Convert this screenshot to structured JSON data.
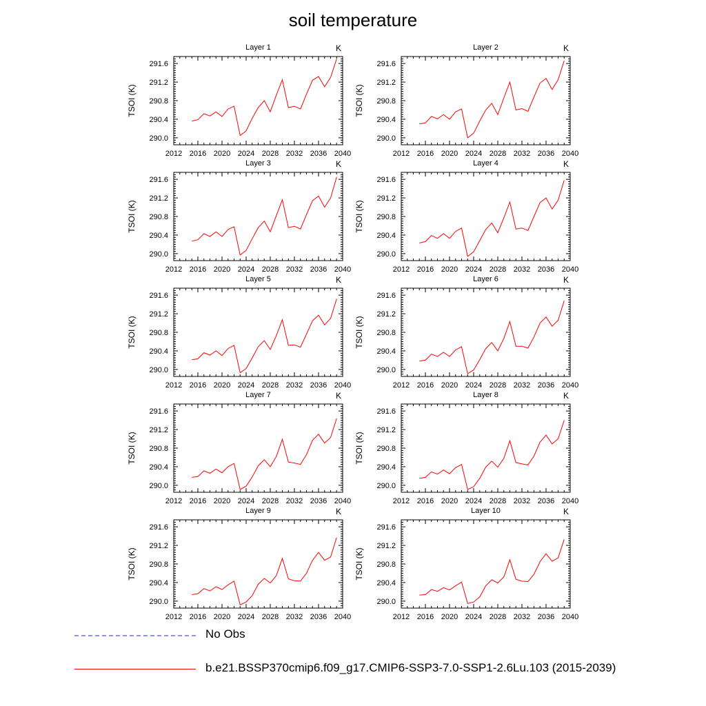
{
  "figure_title": "soil temperature",
  "legend": [
    {
      "label": "No Obs",
      "color": "#8f8fff",
      "style": "dashed"
    },
    {
      "label": "b.e21.BSSP370cmip6.f09_g17.CMIP6-SSP3-7.0-SSP1-2.6Lu.103 (2015-2039)",
      "color": "#ff0000",
      "style": "solid"
    }
  ],
  "chart_data": {
    "type": "line",
    "ylabel": "TSOI  (K)",
    "units_label": "K",
    "xlim": [
      2012,
      2040
    ],
    "ylim": [
      289.85,
      291.75
    ],
    "xticks": [
      2012,
      2016,
      2020,
      2024,
      2028,
      2032,
      2036,
      2040
    ],
    "yticks": [
      290.0,
      290.4,
      290.8,
      291.2,
      291.6
    ],
    "x": [
      2015,
      2016,
      2017,
      2018,
      2019,
      2020,
      2021,
      2022,
      2023,
      2024,
      2025,
      2026,
      2027,
      2028,
      2029,
      2030,
      2031,
      2032,
      2033,
      2034,
      2035,
      2036,
      2037,
      2038,
      2039
    ],
    "line_color": "#ff0000",
    "panels": [
      {
        "title": "Layer 1",
        "values": [
          290.36,
          290.39,
          290.52,
          290.47,
          290.56,
          290.46,
          290.62,
          290.68,
          290.05,
          290.15,
          290.42,
          290.65,
          290.8,
          290.56,
          290.92,
          291.25,
          290.65,
          290.68,
          290.62,
          290.94,
          291.24,
          291.32,
          291.1,
          291.3,
          291.7
        ]
      },
      {
        "title": "Layer 2",
        "values": [
          290.3,
          290.32,
          290.46,
          290.41,
          290.5,
          290.4,
          290.56,
          290.62,
          290.0,
          290.1,
          290.36,
          290.6,
          290.74,
          290.5,
          290.86,
          291.2,
          290.6,
          290.63,
          290.57,
          290.88,
          291.18,
          291.28,
          291.04,
          291.25,
          291.66
        ]
      },
      {
        "title": "Layer 3",
        "values": [
          290.27,
          290.3,
          290.43,
          290.37,
          290.47,
          290.37,
          290.52,
          290.58,
          289.97,
          290.07,
          290.32,
          290.56,
          290.7,
          290.47,
          290.82,
          291.16,
          290.56,
          290.59,
          290.53,
          290.84,
          291.14,
          291.24,
          291.0,
          291.2,
          291.65
        ]
      },
      {
        "title": "Layer 4",
        "values": [
          290.23,
          290.26,
          290.39,
          290.33,
          290.43,
          290.33,
          290.48,
          290.55,
          289.94,
          290.04,
          290.28,
          290.52,
          290.66,
          290.45,
          290.77,
          291.11,
          290.53,
          290.55,
          290.5,
          290.8,
          291.1,
          291.2,
          290.96,
          291.15,
          291.58
        ]
      },
      {
        "title": "Layer 5",
        "values": [
          290.21,
          290.23,
          290.36,
          290.31,
          290.4,
          290.3,
          290.45,
          290.52,
          289.93,
          290.02,
          290.25,
          290.49,
          290.62,
          290.43,
          290.73,
          291.07,
          290.52,
          290.53,
          290.48,
          290.76,
          291.05,
          291.17,
          290.96,
          291.1,
          291.52
        ]
      },
      {
        "title": "Layer 6",
        "values": [
          290.18,
          290.2,
          290.33,
          290.28,
          290.37,
          290.28,
          290.42,
          290.49,
          289.91,
          289.99,
          290.21,
          290.45,
          290.58,
          290.4,
          290.67,
          291.03,
          290.5,
          290.5,
          290.46,
          290.7,
          291.0,
          291.13,
          290.93,
          291.06,
          291.48
        ]
      },
      {
        "title": "Layer 7",
        "values": [
          290.17,
          290.19,
          290.31,
          290.26,
          290.35,
          290.27,
          290.4,
          290.47,
          289.91,
          289.98,
          290.18,
          290.42,
          290.55,
          290.4,
          290.62,
          290.99,
          290.5,
          290.48,
          290.45,
          290.66,
          290.97,
          291.1,
          290.91,
          291.03,
          291.44
        ]
      },
      {
        "title": "Layer 8",
        "values": [
          290.15,
          290.17,
          290.29,
          290.24,
          290.33,
          290.25,
          290.38,
          290.45,
          289.91,
          289.97,
          290.15,
          290.39,
          290.52,
          290.39,
          290.58,
          290.96,
          290.49,
          290.46,
          290.44,
          290.63,
          290.93,
          291.08,
          290.89,
          291.0,
          291.4
        ]
      },
      {
        "title": "Layer 9",
        "values": [
          290.14,
          290.16,
          290.27,
          290.22,
          290.31,
          290.25,
          290.35,
          290.43,
          289.92,
          289.98,
          290.12,
          290.36,
          290.49,
          290.39,
          290.55,
          290.92,
          290.48,
          290.44,
          290.43,
          290.6,
          290.88,
          291.05,
          290.88,
          290.95,
          291.37
        ]
      },
      {
        "title": "Layer 10",
        "values": [
          290.13,
          290.14,
          290.25,
          290.21,
          290.29,
          290.24,
          290.33,
          290.41,
          289.95,
          289.98,
          290.09,
          290.33,
          290.46,
          290.39,
          290.52,
          290.89,
          290.47,
          290.43,
          290.42,
          290.58,
          290.85,
          291.02,
          290.86,
          290.93,
          291.33
        ]
      }
    ]
  }
}
